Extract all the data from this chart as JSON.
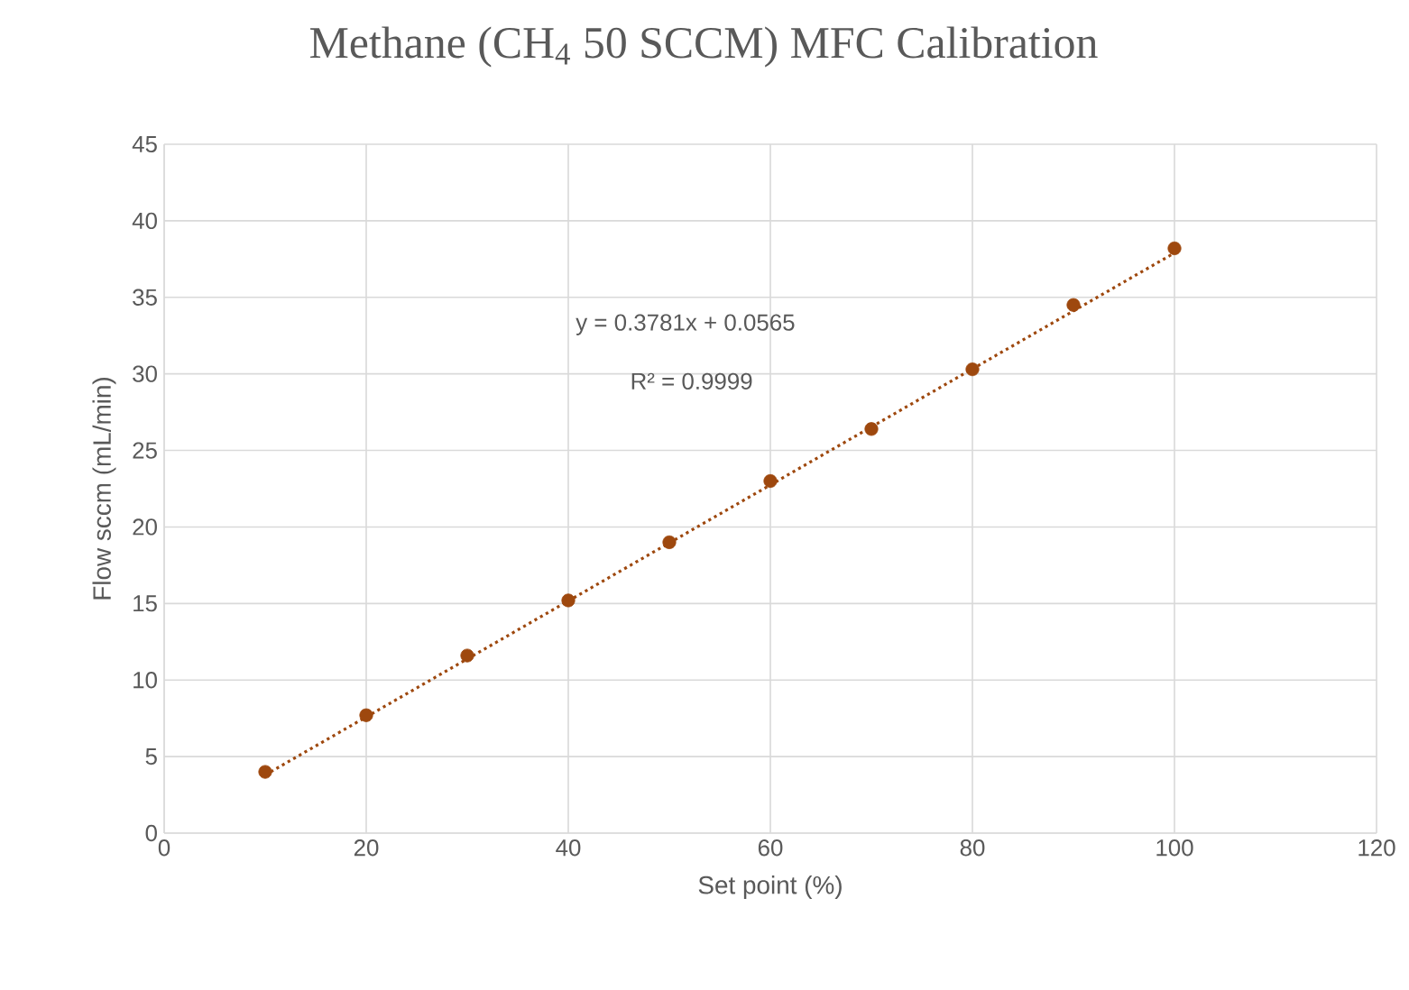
{
  "chart_data": {
    "type": "scatter",
    "title": "Methane (CH$_{4}$ 50 SCCM) MFC Calibration",
    "xlabel": "Set point (%)",
    "ylabel": "Flow sccm (mL/min)",
    "annotations": [
      "y = 0.3781x + 0.0565",
      "R² = 0.9999"
    ],
    "x": [
      10,
      20,
      30,
      40,
      50,
      60,
      70,
      80,
      90,
      100
    ],
    "series": [
      {
        "type": "scatter",
        "color": "#9e480e",
        "values": [
          4.0,
          7.7,
          11.6,
          15.2,
          19.0,
          23.0,
          26.4,
          30.3,
          34.5,
          38.2
        ]
      },
      {
        "type": "line",
        "color": "#9e480e",
        "line_style": "dotted",
        "marker": "none",
        "x": [
          10,
          100
        ],
        "values": [
          3.8,
          37.9
        ]
      }
    ],
    "xlim": [
      0,
      120
    ],
    "xticks": [
      0,
      20,
      40,
      60,
      80,
      100,
      120
    ],
    "ylim": [
      0,
      45
    ],
    "yticks": [
      0,
      5,
      10,
      15,
      20,
      25,
      30,
      35,
      40,
      45
    ],
    "grid": true,
    "legend": false,
    "marker": "circle"
  }
}
